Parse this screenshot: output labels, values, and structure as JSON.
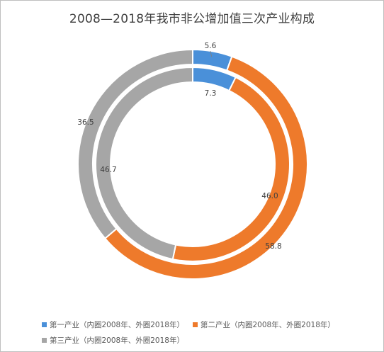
{
  "chart_data": {
    "type": "pie",
    "variant": "nested-donut",
    "title": "2008—2018年我市非公增加值三次产业构成",
    "categories": [
      "第一产业",
      "第二产业",
      "第三产业"
    ],
    "series": [
      {
        "ring": "inner",
        "values": [
          7.3,
          46.0,
          46.7
        ],
        "labels": [
          "7.3",
          "46.0",
          "46.7"
        ]
      },
      {
        "ring": "outer",
        "values": [
          5.6,
          58.8,
          36.5
        ],
        "labels": [
          "5.6",
          "58.8",
          "36.5"
        ]
      }
    ],
    "colors": [
      "#4a90d9",
      "#ee7a2b",
      "#a6a6a6"
    ],
    "legend": {
      "placement": "bottom",
      "entries": [
        "第一产业（内圈2008年、外圈2018年）",
        "第二产业（内圈2008年、外圈2018年）",
        "第三产业（内圈2008年、外圈2018年）"
      ]
    }
  }
}
